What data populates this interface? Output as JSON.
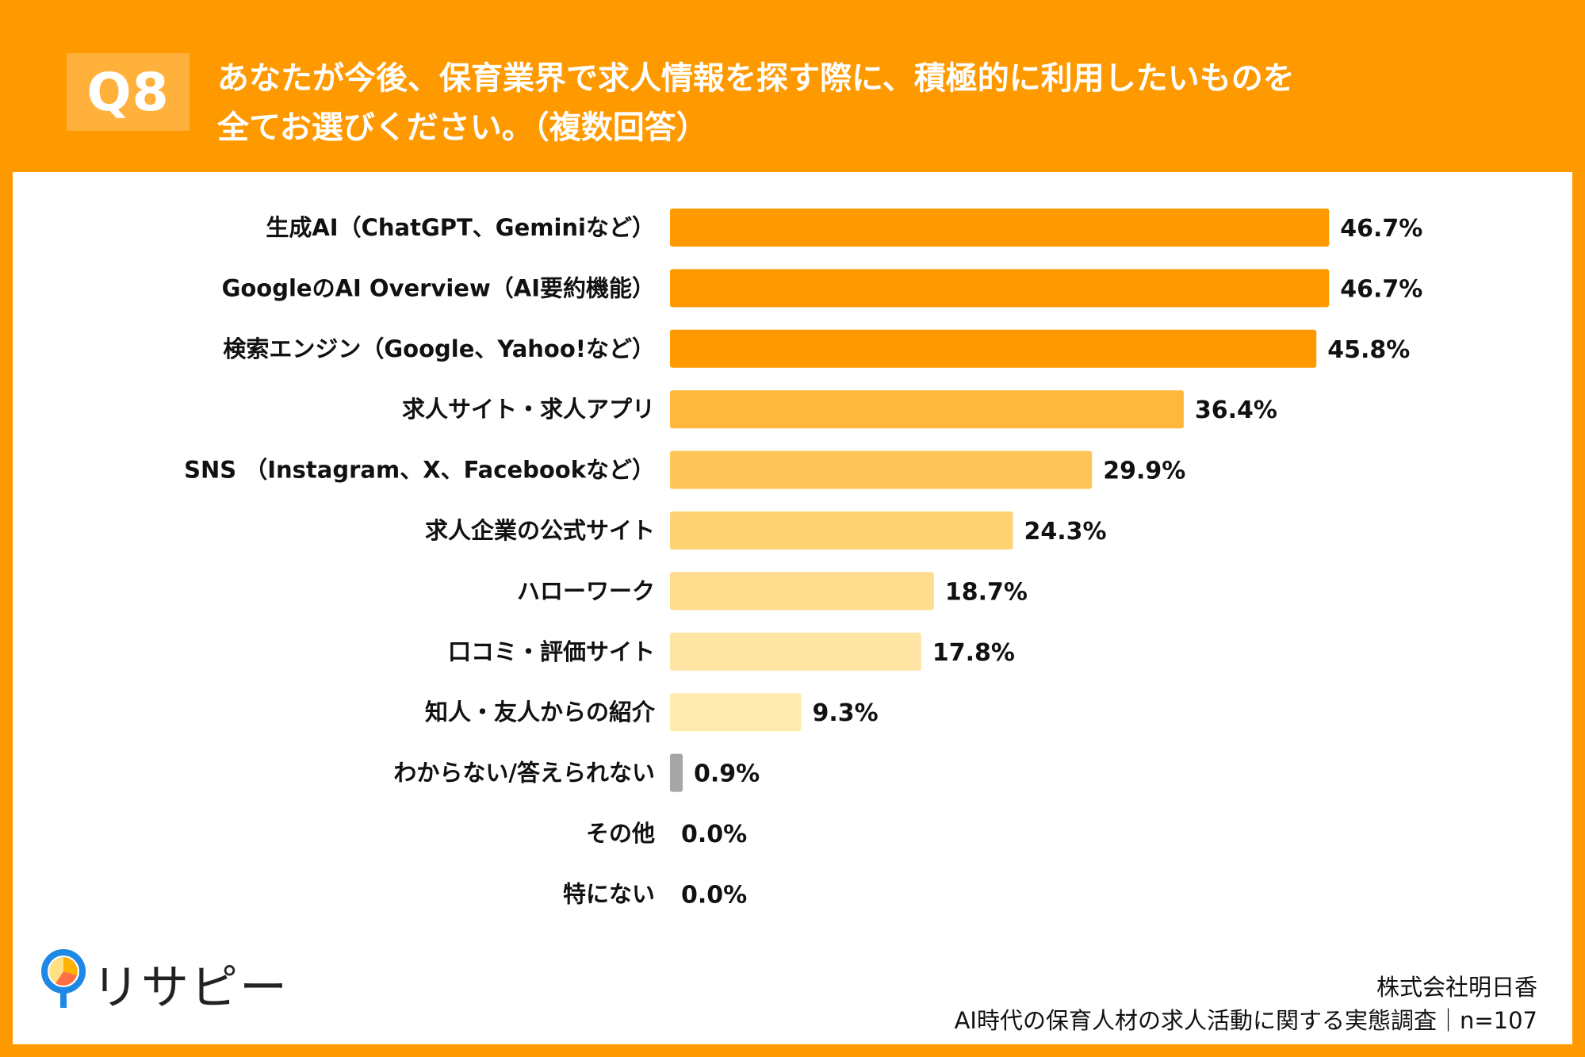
{
  "header": {
    "badge": "Q8",
    "title_line1": "あなたが今後、保育業界で求人情報を探す際に、積極的に利用したいものを",
    "title_line2": "全てお選びください。（複数回答）"
  },
  "chart_data": {
    "type": "bar",
    "orientation": "horizontal",
    "title": "あなたが今後、保育業界で求人情報を探す際に、積極的に利用したいものを全てお選びください。（複数回答）",
    "categories": [
      "生成AI（ChatGPT、Geminiなど）",
      "GoogleのAI Overview（AI要約機能）",
      "検索エンジン（Google、Yahoo!など）",
      "求人サイト・求人アプリ",
      "SNS （Instagram、X、Facebookなど）",
      "求人企業の公式サイト",
      "ハローワーク",
      "口コミ・評価サイト",
      "知人・友人からの紹介",
      "わからない/答えられない",
      "その他",
      "特にない"
    ],
    "values": [
      46.7,
      46.7,
      45.8,
      36.4,
      29.9,
      24.3,
      18.7,
      17.8,
      9.3,
      0.9,
      0.0,
      0.0
    ],
    "value_labels": [
      "46.7%",
      "46.7%",
      "45.8%",
      "36.4%",
      "29.9%",
      "24.3%",
      "18.7%",
      "17.8%",
      "9.3%",
      "0.9%",
      "0.0%",
      "0.0%"
    ],
    "bar_colors": [
      "#FF9900",
      "#FF9900",
      "#FF9900",
      "#FFB83D",
      "#FFC558",
      "#FFD274",
      "#FFDD8E",
      "#FFE5A3",
      "#FFEAB0",
      "#A6A6A6",
      "#A6A6A6",
      "#A6A6A6"
    ],
    "xlabel": "",
    "ylabel": "",
    "xlim": [
      0,
      50
    ],
    "grid": false,
    "legend": "none"
  },
  "branding": {
    "logo_text": "リサピー",
    "company": "株式会社明日香",
    "survey": "AI時代の保育人材の求人活動に関する実態調査｜n=107"
  },
  "colors": {
    "accent": "#FF9900",
    "badge": "#FFB13B",
    "panel": "#FFFFFF"
  }
}
